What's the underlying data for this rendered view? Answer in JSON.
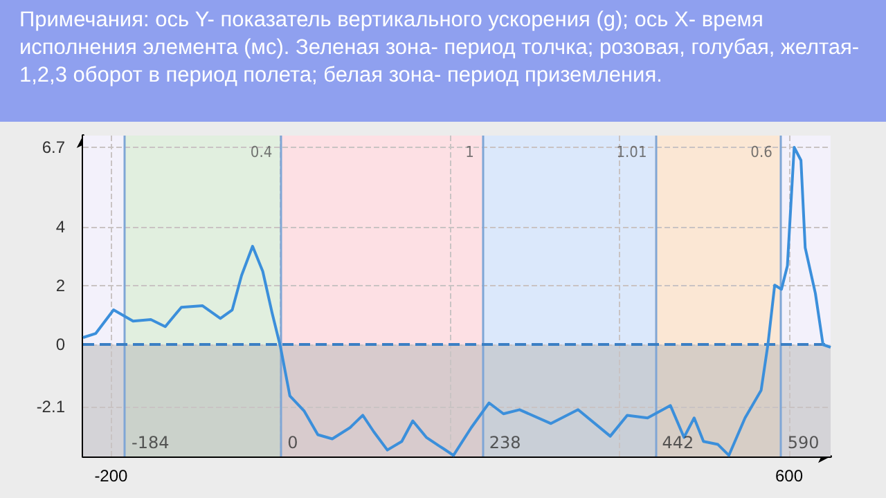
{
  "chart_data": {
    "type": "line",
    "title": "Примечания: ось Y- показатель вертикального ускорения (g); ось X- время исполнения элемента (мс). Зеленая зона- период толчка; розовая, голубая, желтая- 1,2,3 оборот в период полета; белая зона- период приземления.",
    "x": [
      -233,
      -218,
      -197,
      -174,
      -153,
      -136,
      -117,
      -92,
      -71,
      -57,
      -46,
      -33,
      -21,
      -10,
      0,
      11,
      28,
      44,
      61,
      82,
      97,
      110,
      126,
      143,
      156,
      172,
      187,
      192,
      204,
      225,
      246,
      263,
      282,
      319,
      351,
      389,
      409,
      433,
      460,
      476,
      488,
      499,
      516,
      529,
      548,
      567,
      575,
      583,
      591,
      598,
      606,
      614,
      619,
      631,
      640,
      649
    ],
    "series": [
      {
        "color": "#3b8fdb",
        "values": [
          0.24,
          0.38,
          1.18,
          0.8,
          0.85,
          0.61,
          1.27,
          1.32,
          0.89,
          1.18,
          2.35,
          3.34,
          2.49,
          1.08,
          -0.09,
          -1.74,
          -2.26,
          -3.06,
          -3.2,
          -2.82,
          -2.4,
          -2.96,
          -3.58,
          -3.29,
          -2.59,
          -3.15,
          -3.44,
          -3.53,
          -3.76,
          -2.82,
          -1.98,
          -2.35,
          -2.21,
          -2.68,
          -2.21,
          -3.11,
          -2.4,
          -2.49,
          -2.07,
          -3.15,
          -2.49,
          -3.29,
          -3.39,
          -3.76,
          -2.49,
          -1.55,
          0,
          2.02,
          1.88,
          2.68,
          6.7,
          6.26,
          3.29,
          1.74,
          0,
          -0.09
        ]
      }
    ],
    "xlim": [
      -233,
      649
    ],
    "xticks": [
      -200,
      {
        "value": 0,
        "label": null
      },
      {
        "value": 200,
        "label": null
      },
      {
        "value": 400,
        "label": null
      },
      600
    ],
    "ylim": [
      -3.8,
      7.1
    ],
    "yticks": [
      -2.1,
      0,
      2,
      4,
      6.7
    ],
    "grid": true,
    "marker": "none",
    "line_style": "solid",
    "bands": [
      {
        "axis": "x",
        "from": -233,
        "to": -184,
        "color": "#f3f1fb"
      },
      {
        "axis": "x",
        "from": -184,
        "to": 0,
        "label": "0.4",
        "color": "#e1efdf"
      },
      {
        "axis": "x",
        "from": 0,
        "to": 238,
        "label": "1",
        "color": "#fde0e4"
      },
      {
        "axis": "x",
        "from": 238,
        "to": 442,
        "label": "1.01",
        "color": "#dbe8fb"
      },
      {
        "axis": "x",
        "from": 442,
        "to": 590,
        "label": "0.6",
        "color": "#fbe7d4"
      },
      {
        "axis": "x",
        "from": 590,
        "to": 649,
        "color": "#f3f1fb"
      },
      {
        "axis": "y",
        "from": -3.8,
        "to": 0,
        "color": "#b9b9b9"
      }
    ],
    "ref_lines": [
      {
        "axis": "x",
        "value": -184,
        "label": "-184",
        "color": "#7fa6d6"
      },
      {
        "axis": "x",
        "value": 0,
        "label": "0",
        "color": "#7fa6d6"
      },
      {
        "axis": "x",
        "value": 238,
        "label": "238",
        "color": "#7fa6d6"
      },
      {
        "axis": "x",
        "value": 442,
        "label": "442",
        "color": "#7fa6d6"
      },
      {
        "axis": "x",
        "value": 590,
        "label": "590",
        "color": "#7fa6d6"
      },
      {
        "axis": "y",
        "value": 0,
        "color": "#3b7fc4",
        "line_style": "dashed"
      }
    ]
  }
}
